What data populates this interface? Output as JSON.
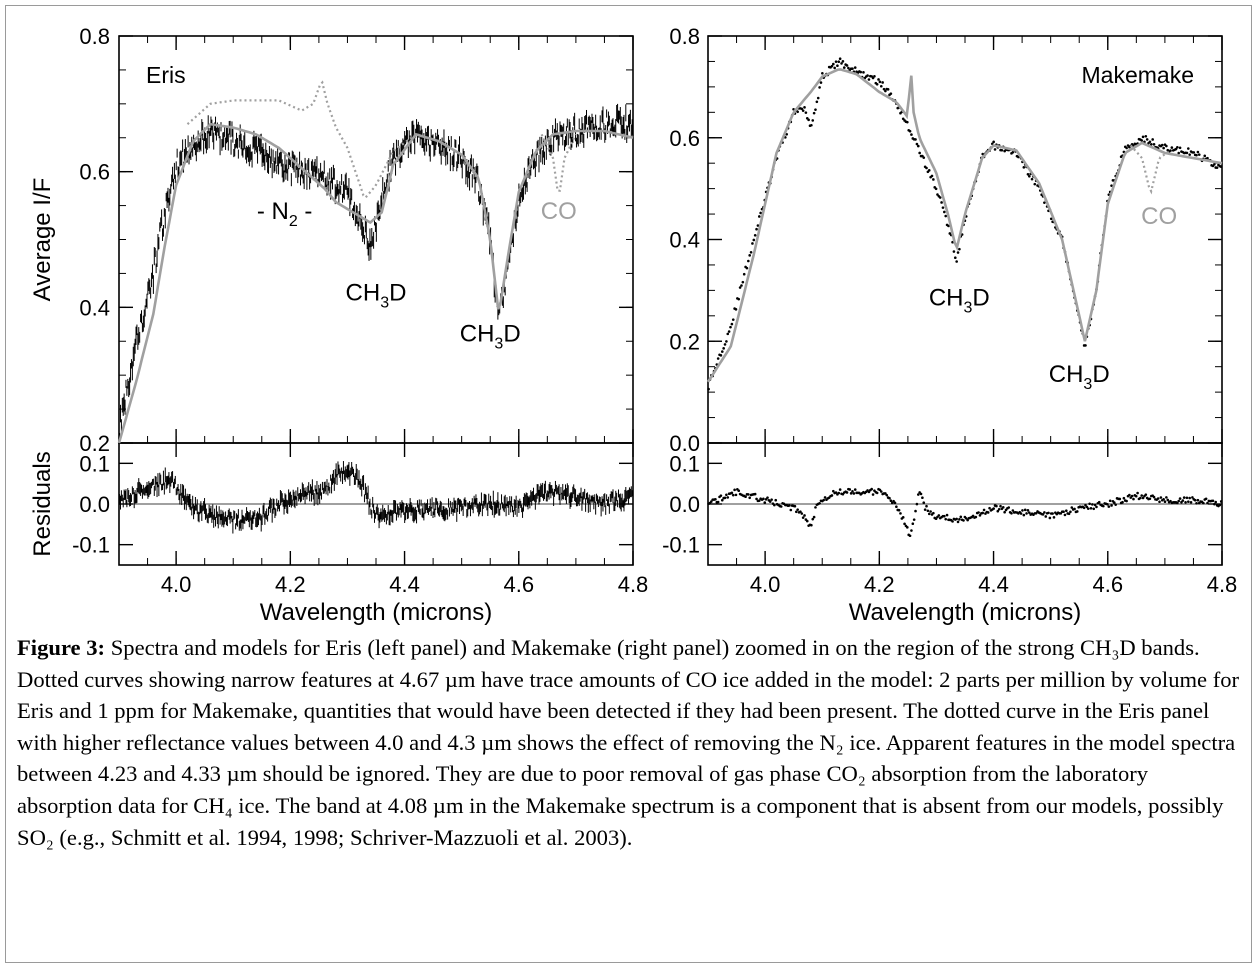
{
  "figure": {
    "x_axis_label": "Wavelength (microns)",
    "y_axis_label_top": "Average I/F",
    "y_axis_label_bottom": "Residuals"
  },
  "chart_data": [
    {
      "type": "line",
      "panel": "left",
      "object_label": "Eris",
      "xlim": [
        3.9,
        4.8
      ],
      "ylim": [
        0.2,
        0.8
      ],
      "x_ticks": [
        "4.0",
        "4.2",
        "4.4",
        "4.6",
        "4.8"
      ],
      "y_ticks": [
        "0.2",
        "0.4",
        "0.6",
        "0.8"
      ],
      "residual_ylim": [
        -0.15,
        0.15
      ],
      "residual_ticks": [
        "-0.1",
        "0.0",
        "0.1"
      ],
      "annotations": [
        {
          "text": "- N₂ -",
          "x": 4.19,
          "y": 0.53
        },
        {
          "text": "CH₃D",
          "x": 4.35,
          "y": 0.41
        },
        {
          "text": "CH₃D",
          "x": 4.55,
          "y": 0.35
        },
        {
          "text": "CO",
          "x": 4.67,
          "y": 0.53
        }
      ],
      "series": [
        {
          "style": "data",
          "x": [
            3.9,
            3.93,
            3.96,
            3.98,
            4.0,
            4.03,
            4.06,
            4.1,
            4.14,
            4.18,
            4.22,
            4.26,
            4.3,
            4.32,
            4.34,
            4.36,
            4.38,
            4.42,
            4.46,
            4.5,
            4.53,
            4.55,
            4.565,
            4.58,
            4.6,
            4.63,
            4.66,
            4.7,
            4.75,
            4.8
          ],
          "y": [
            0.22,
            0.35,
            0.45,
            0.54,
            0.61,
            0.64,
            0.66,
            0.645,
            0.63,
            0.61,
            0.6,
            0.59,
            0.57,
            0.53,
            0.49,
            0.56,
            0.62,
            0.65,
            0.64,
            0.62,
            0.58,
            0.5,
            0.38,
            0.46,
            0.56,
            0.62,
            0.65,
            0.66,
            0.67,
            0.67
          ]
        },
        {
          "style": "model",
          "x": [
            3.9,
            3.93,
            3.96,
            3.98,
            4.0,
            4.03,
            4.06,
            4.1,
            4.14,
            4.18,
            4.22,
            4.26,
            4.28,
            4.3,
            4.32,
            4.34,
            4.36,
            4.38,
            4.42,
            4.46,
            4.5,
            4.53,
            4.55,
            4.565,
            4.58,
            4.6,
            4.63,
            4.66,
            4.7,
            4.75,
            4.8
          ],
          "y": [
            0.2,
            0.29,
            0.39,
            0.49,
            0.58,
            0.645,
            0.67,
            0.665,
            0.655,
            0.635,
            0.605,
            0.575,
            0.555,
            0.545,
            0.535,
            0.525,
            0.54,
            0.61,
            0.655,
            0.645,
            0.625,
            0.59,
            0.5,
            0.39,
            0.47,
            0.57,
            0.63,
            0.655,
            0.66,
            0.66,
            0.65
          ]
        },
        {
          "style": "model-no-n2",
          "x": [
            4.02,
            4.06,
            4.1,
            4.14,
            4.18,
            4.22,
            4.24,
            4.255,
            4.265,
            4.28,
            4.3,
            4.33,
            4.35,
            4.38,
            4.42
          ],
          "y": [
            0.67,
            0.7,
            0.705,
            0.705,
            0.705,
            0.69,
            0.7,
            0.735,
            0.7,
            0.665,
            0.635,
            0.56,
            0.58,
            0.63,
            0.655
          ]
        },
        {
          "style": "model-co",
          "x": [
            4.64,
            4.66,
            4.67,
            4.68,
            4.7
          ],
          "y": [
            0.655,
            0.62,
            0.56,
            0.62,
            0.655
          ]
        },
        {
          "style": "residuals",
          "x": [
            3.9,
            3.95,
            3.99,
            4.02,
            4.06,
            4.1,
            4.14,
            4.18,
            4.22,
            4.26,
            4.28,
            4.3,
            4.32,
            4.35,
            4.4,
            4.45,
            4.5,
            4.55,
            4.6,
            4.65,
            4.7,
            4.75,
            4.8
          ],
          "y": [
            0.0,
            0.04,
            0.06,
            0.0,
            -0.03,
            -0.04,
            -0.04,
            0.0,
            0.02,
            0.03,
            0.07,
            0.08,
            0.06,
            -0.03,
            -0.02,
            -0.01,
            -0.01,
            0.0,
            -0.01,
            0.03,
            0.02,
            0.0,
            0.02
          ]
        }
      ]
    },
    {
      "type": "line",
      "panel": "right",
      "object_label": "Makemake",
      "xlim": [
        3.9,
        4.8
      ],
      "ylim": [
        0.0,
        0.8
      ],
      "x_ticks": [
        "4.0",
        "4.2",
        "4.4",
        "4.6",
        "4.8"
      ],
      "y_ticks": [
        "0.0",
        "0.2",
        "0.4",
        "0.6",
        "0.8"
      ],
      "residual_ylim": [
        -0.15,
        0.15
      ],
      "residual_ticks": [
        "-0.1",
        "0.0",
        "0.1"
      ],
      "annotations": [
        {
          "text": "CH₃D",
          "x": 4.34,
          "y": 0.27
        },
        {
          "text": "CH₃D",
          "x": 4.55,
          "y": 0.12
        },
        {
          "text": "CO",
          "x": 4.69,
          "y": 0.43
        }
      ],
      "series": [
        {
          "style": "data",
          "x": [
            3.9,
            3.94,
            3.98,
            4.02,
            4.05,
            4.07,
            4.08,
            4.09,
            4.1,
            4.13,
            4.16,
            4.2,
            4.23,
            4.26,
            4.28,
            4.3,
            4.32,
            4.335,
            4.35,
            4.38,
            4.4,
            4.44,
            4.48,
            4.52,
            4.54,
            4.56,
            4.58,
            4.6,
            4.63,
            4.66,
            4.7,
            4.75,
            4.8
          ],
          "y": [
            0.11,
            0.23,
            0.4,
            0.56,
            0.65,
            0.66,
            0.62,
            0.67,
            0.72,
            0.75,
            0.73,
            0.71,
            0.67,
            0.6,
            0.55,
            0.5,
            0.43,
            0.36,
            0.44,
            0.56,
            0.585,
            0.57,
            0.5,
            0.4,
            0.3,
            0.19,
            0.3,
            0.48,
            0.58,
            0.6,
            0.58,
            0.57,
            0.54
          ]
        },
        {
          "style": "model",
          "x": [
            3.9,
            3.94,
            3.98,
            4.02,
            4.05,
            4.08,
            4.1,
            4.13,
            4.16,
            4.2,
            4.23,
            4.25,
            4.255,
            4.26,
            4.27,
            4.3,
            4.32,
            4.335,
            4.35,
            4.38,
            4.4,
            4.44,
            4.48,
            4.52,
            4.54,
            4.56,
            4.58,
            4.6,
            4.63,
            4.66,
            4.7,
            4.75,
            4.8
          ],
          "y": [
            0.12,
            0.19,
            0.37,
            0.57,
            0.65,
            0.69,
            0.72,
            0.735,
            0.725,
            0.69,
            0.67,
            0.64,
            0.74,
            0.65,
            0.6,
            0.53,
            0.45,
            0.38,
            0.45,
            0.56,
            0.585,
            0.575,
            0.51,
            0.4,
            0.3,
            0.2,
            0.3,
            0.47,
            0.57,
            0.59,
            0.57,
            0.56,
            0.55
          ]
        },
        {
          "style": "model-co",
          "x": [
            4.64,
            4.66,
            4.675,
            4.69,
            4.71
          ],
          "y": [
            0.585,
            0.56,
            0.49,
            0.56,
            0.575
          ]
        },
        {
          "style": "residuals",
          "x": [
            3.9,
            3.95,
            4.0,
            4.05,
            4.07,
            4.08,
            4.09,
            4.12,
            4.16,
            4.2,
            4.23,
            4.245,
            4.255,
            4.27,
            4.28,
            4.3,
            4.34,
            4.4,
            4.45,
            4.5,
            4.55,
            4.6,
            4.65,
            4.7,
            4.75,
            4.8
          ],
          "y": [
            0.0,
            0.03,
            0.01,
            -0.01,
            -0.03,
            -0.06,
            0.0,
            0.03,
            0.03,
            0.03,
            0.0,
            -0.05,
            -0.08,
            0.03,
            -0.01,
            -0.03,
            -0.04,
            -0.01,
            -0.02,
            -0.03,
            -0.01,
            0.0,
            0.02,
            0.01,
            0.01,
            0.0
          ]
        }
      ]
    }
  ],
  "caption": {
    "label": "Figure 3:",
    "text": "Spectra and models for Eris (left panel) and Makemake (right panel) zoomed in on the region of the strong CH₃D bands.  Dotted curves showing narrow features at 4.67 µm have trace amounts of CO ice added in the model: 2 parts per million by volume for Eris and 1 ppm for Makemake, quantities that would have been detected if they had been present.  The dotted curve in the Eris panel with higher reflectance values between 4.0 and 4.3 µm shows the effect of removing the N₂ ice.  Apparent features in the model spectra between 4.23 and 4.33 µm should be ignored.  They are due to poor removal of gas phase CO₂ absorption from the laboratory absorption data for CH₄ ice.  The band at 4.08 µm in the Makemake spectrum is a component that is absent from our models, possibly SO₂ (e.g., Schmitt et al. 1994, 1998; Schriver-Mazzuoli et al. 2003)."
  }
}
